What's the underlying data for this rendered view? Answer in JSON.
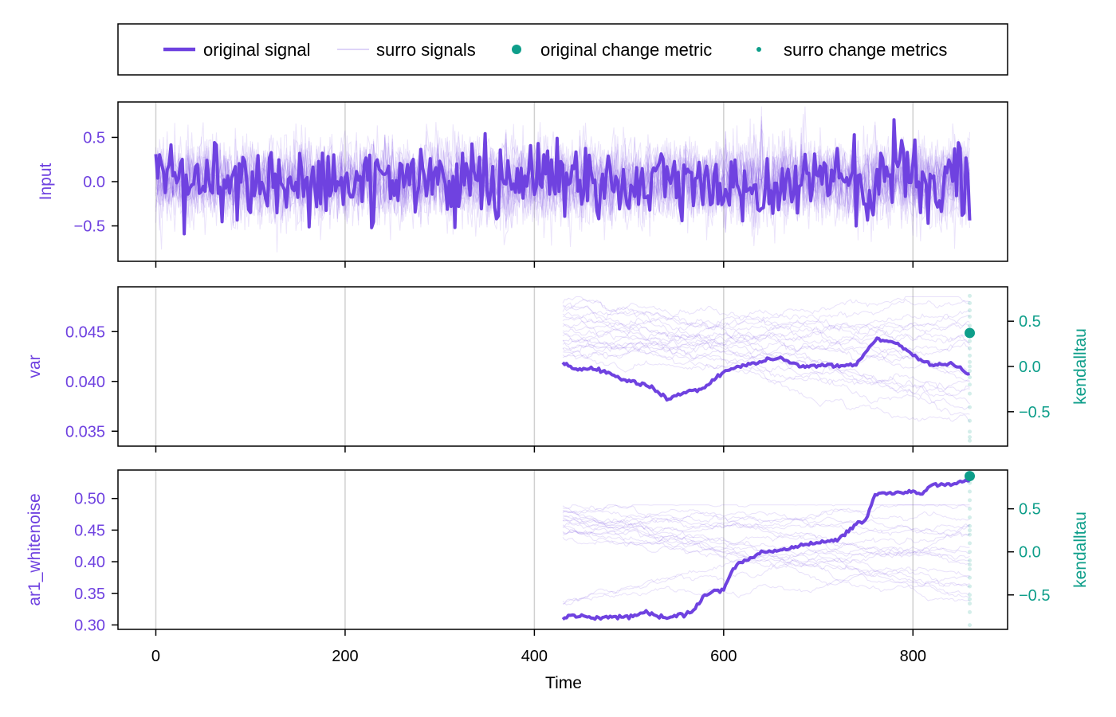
{
  "colors": {
    "signal": "#6f42e0",
    "metric": "#0e9e8a",
    "grid": "#d0d0d0",
    "axis": "#000000"
  },
  "legend": {
    "items": [
      {
        "label": "original signal",
        "kind": "thick-line"
      },
      {
        "label": "surro signals",
        "kind": "thin-line"
      },
      {
        "label": "original change metric",
        "kind": "big-dot"
      },
      {
        "label": "surro change metrics",
        "kind": "small-dot"
      }
    ]
  },
  "chart_data": [
    {
      "type": "line",
      "panel": "input",
      "ylabel": "Input",
      "xlim": [
        -40,
        900
      ],
      "ylim": [
        -0.9,
        0.9
      ],
      "yticks": [
        -0.5,
        0.0,
        0.5
      ],
      "ytick_labels": [
        "−0.5",
        "0.0",
        "0.5"
      ],
      "xticks": [
        0,
        200,
        400,
        600,
        800
      ],
      "grid": true,
      "x_range": [
        0,
        860
      ],
      "noise_amplitude": 0.22,
      "peak_points": [
        {
          "x": 395,
          "y": 0.68
        },
        {
          "x": 738,
          "y": 0.53
        },
        {
          "x": 1,
          "y": 0.32
        },
        {
          "x": 755,
          "y": 0.33
        },
        {
          "x": 844,
          "y": 0.37
        },
        {
          "x": 848,
          "y": 0.44
        },
        {
          "x": 740,
          "y": -0.5
        },
        {
          "x": 228,
          "y": -0.52
        }
      ],
      "surrogate_count": 20
    },
    {
      "type": "line",
      "panel": "var",
      "ylabel": "var",
      "y2label": "kendalltau",
      "xlim": [
        -40,
        900
      ],
      "ylim": [
        0.0335,
        0.0495
      ],
      "yticks": [
        0.035,
        0.04,
        0.045
      ],
      "ytick_labels": [
        "0.035",
        "0.040",
        "0.045"
      ],
      "y2lim": [
        -0.88,
        0.88
      ],
      "y2ticks": [
        -0.5,
        0.0,
        0.5
      ],
      "y2tick_labels": [
        "−0.5",
        "0.0",
        "0.5"
      ],
      "xticks": [
        0,
        200,
        400,
        600,
        800
      ],
      "grid": true,
      "original_series": {
        "x": [
          430,
          440,
          460,
          480,
          500,
          520,
          540,
          560,
          580,
          600,
          620,
          640,
          660,
          680,
          700,
          720,
          740,
          760,
          780,
          800,
          820,
          840,
          860
        ],
        "y": [
          0.042,
          0.0412,
          0.0413,
          0.0408,
          0.04,
          0.0396,
          0.0383,
          0.0389,
          0.0393,
          0.041,
          0.0416,
          0.042,
          0.0424,
          0.0415,
          0.0416,
          0.0416,
          0.0417,
          0.0442,
          0.044,
          0.0427,
          0.0416,
          0.0418,
          0.0407
        ]
      },
      "original_change_metric": {
        "x": 860,
        "y": 0.37
      },
      "surro_change_metrics_x": 860,
      "surro_change_metrics": [
        -0.78,
        -0.72,
        -0.6,
        -0.45,
        -0.3,
        -0.2,
        -0.12,
        -0.05,
        0.0,
        0.05,
        0.12,
        0.2,
        0.28,
        0.35,
        0.45,
        0.55,
        0.62,
        0.7,
        0.78,
        -0.82
      ],
      "surrogate_count": 20,
      "surrogate_range": [
        0.0352,
        0.0485
      ]
    },
    {
      "type": "line",
      "panel": "ar1",
      "ylabel": "ar1_whitenoise",
      "y2label": "kendalltau",
      "xlabel": "Time",
      "xlim": [
        -40,
        900
      ],
      "ylim": [
        0.293,
        0.545
      ],
      "yticks": [
        0.3,
        0.35,
        0.4,
        0.45,
        0.5
      ],
      "ytick_labels": [
        "0.30",
        "0.35",
        "0.40",
        "0.45",
        "0.50"
      ],
      "y2lim": [
        -0.9,
        0.95
      ],
      "y2ticks": [
        -0.5,
        0.0,
        0.5
      ],
      "y2tick_labels": [
        "−0.5",
        "0.0",
        "0.5"
      ],
      "xticks": [
        0,
        200,
        400,
        600,
        800
      ],
      "xtick_labels": [
        "0",
        "200",
        "400",
        "600",
        "800"
      ],
      "grid": true,
      "original_series": {
        "x": [
          430,
          440,
          460,
          480,
          500,
          520,
          540,
          560,
          570,
          580,
          600,
          610,
          620,
          640,
          660,
          680,
          700,
          720,
          740,
          750,
          760,
          780,
          800,
          810,
          820,
          840,
          860
        ],
        "y": [
          0.311,
          0.315,
          0.311,
          0.312,
          0.313,
          0.32,
          0.311,
          0.318,
          0.325,
          0.35,
          0.356,
          0.39,
          0.4,
          0.415,
          0.418,
          0.425,
          0.43,
          0.435,
          0.46,
          0.465,
          0.505,
          0.51,
          0.511,
          0.507,
          0.52,
          0.523,
          0.53
        ]
      },
      "original_change_metric": {
        "x": 860,
        "y": 0.88
      },
      "surro_change_metrics_x": 860,
      "surro_change_metrics": [
        -0.85,
        -0.7,
        -0.6,
        -0.5,
        -0.4,
        -0.3,
        -0.2,
        -0.1,
        0.0,
        0.1,
        0.2,
        0.3,
        0.4,
        0.5,
        0.6,
        0.7,
        0.8,
        -0.15,
        0.25,
        -0.55
      ],
      "surrogate_count": 20,
      "surrogate_range": [
        0.33,
        0.49
      ]
    }
  ]
}
